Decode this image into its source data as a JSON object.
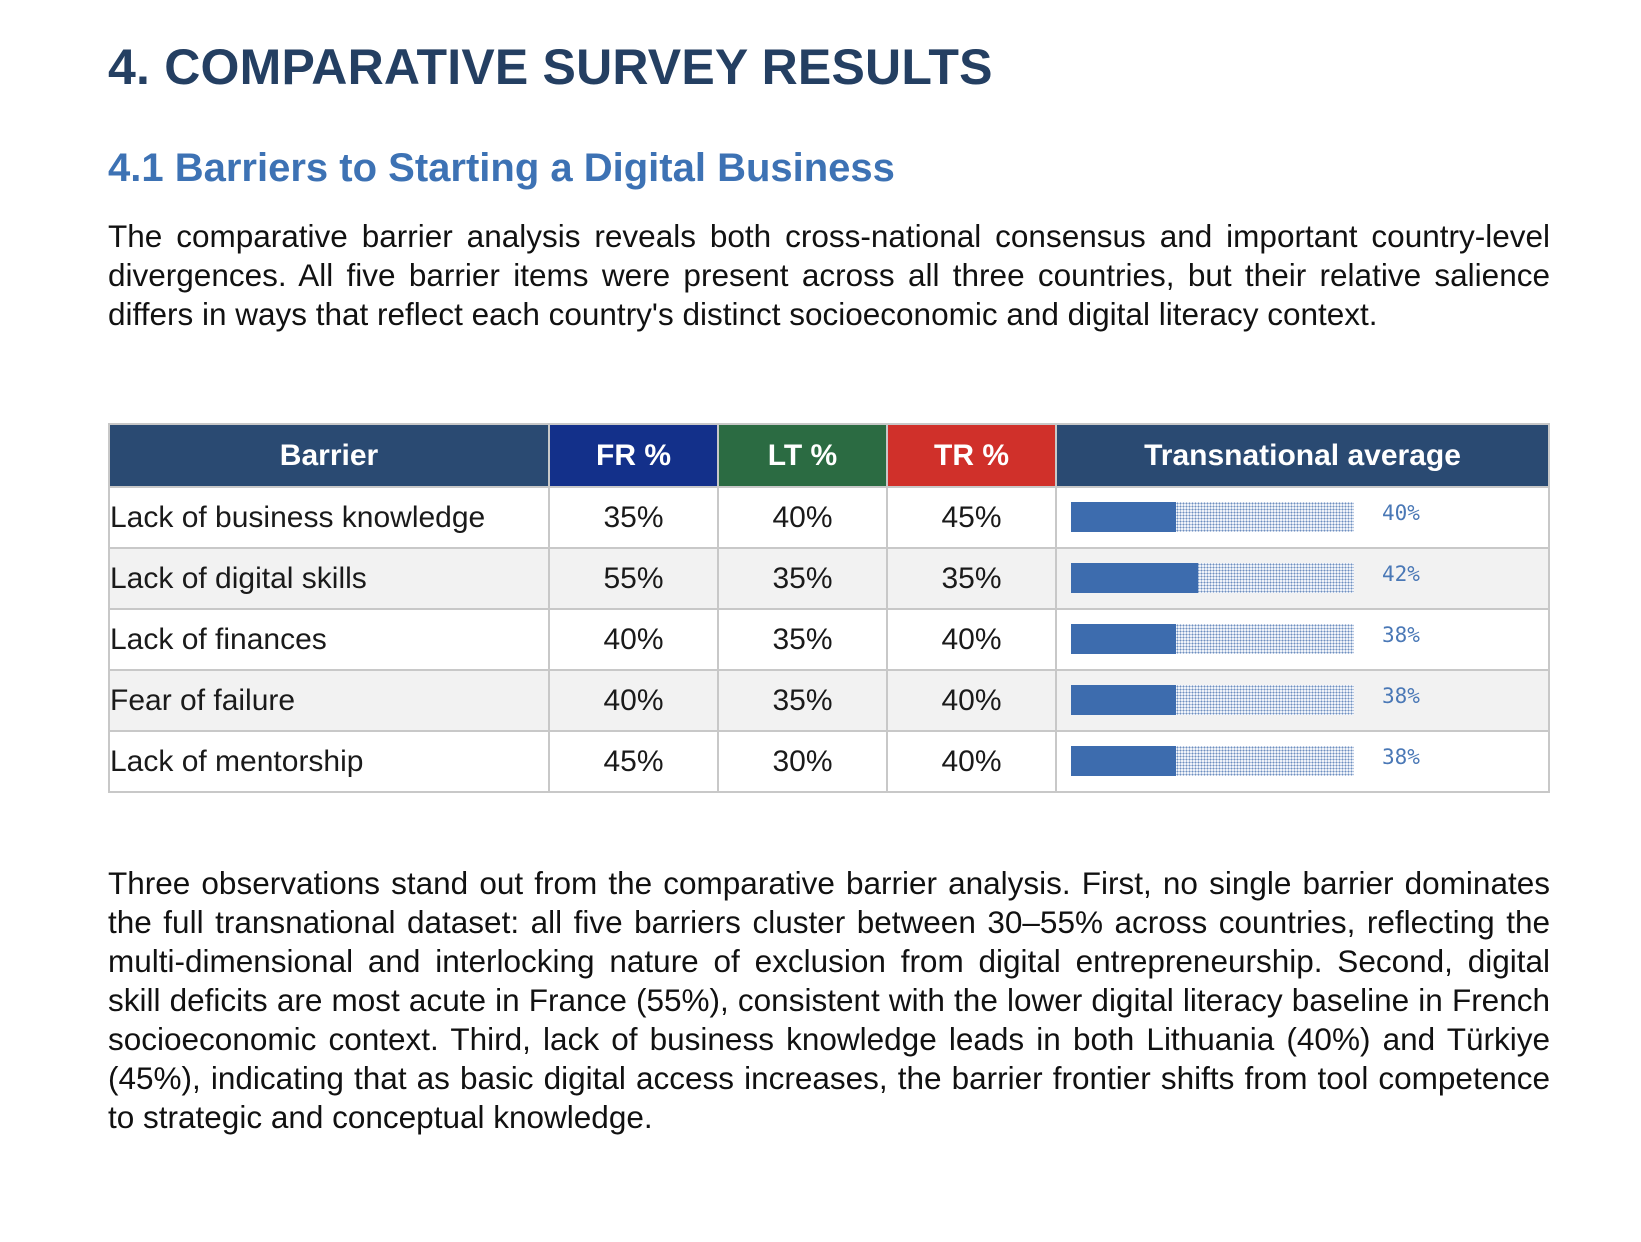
{
  "heading": "4. COMPARATIVE SURVEY RESULTS",
  "subheading": "4.1 Barriers to Starting a Digital Business",
  "intro": "The comparative barrier analysis reveals both cross-national consensus and important country-level divergences. All five barrier items were present across all three countries, but their relative salience differs in ways that reflect each country's distinct socioeconomic and digital literacy context.",
  "table": {
    "headers": {
      "barrier": "Barrier",
      "fr": "FR %",
      "lt": "LT %",
      "tr": "TR %",
      "average": "Transnational average"
    },
    "colors": {
      "header_default": "#2a4a72",
      "fr": "#13308a",
      "lt": "#2b6b42",
      "tr": "#d0302a",
      "bar_fill": "#3d6cae"
    },
    "rows": [
      {
        "barrier": "Lack of business knowledge",
        "fr": "35%",
        "lt": "40%",
        "tr": "45%",
        "average_label": "40%",
        "bar_fraction": 0.37
      },
      {
        "barrier": "Lack of digital skills",
        "fr": "55%",
        "lt": "35%",
        "tr": "35%",
        "average_label": "42%",
        "bar_fraction": 0.45
      },
      {
        "barrier": "Lack of finances",
        "fr": "40%",
        "lt": "35%",
        "tr": "40%",
        "average_label": "38%",
        "bar_fraction": 0.37
      },
      {
        "barrier": "Fear of failure",
        "fr": "40%",
        "lt": "35%",
        "tr": "40%",
        "average_label": "38%",
        "bar_fraction": 0.37
      },
      {
        "barrier": "Lack of mentorship",
        "fr": "45%",
        "lt": "30%",
        "tr": "40%",
        "average_label": "38%",
        "bar_fraction": 0.37
      }
    ]
  },
  "observations": "Three observations stand out from the comparative barrier analysis. First, no single barrier dominates the full transnational dataset: all five barriers cluster between 30–55% across countries, reflecting the multi-dimensional and interlocking nature of exclusion from digital entrepreneurship. Second, digital skill deficits are most acute in France (55%), consistent with the lower digital literacy baseline in French socioeconomic context. Third, lack of business knowledge leads in both Lithuania (40%) and Türkiye (45%), indicating that as basic digital access increases, the barrier frontier shifts from tool competence to strategic and conceptual knowledge."
}
